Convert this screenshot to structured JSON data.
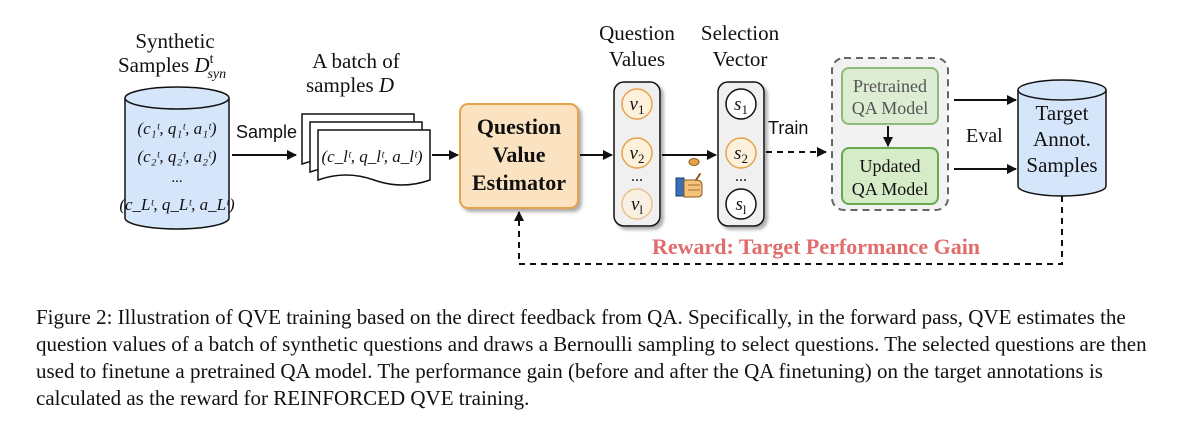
{
  "diagram": {
    "synthetic": {
      "line1": "Synthetic",
      "line2": "Samples ",
      "sym": "D",
      "sup": "t",
      "sub": "syn",
      "rows": [
        "(c₁ᵗ, q₁ᵗ, a₁ᵗ)",
        "(c₂ᵗ, q₂ᵗ, a₂ᵗ)",
        "...",
        "(c_Lᵗ, q_Lᵗ, a_Lᵗ)"
      ]
    },
    "batch": {
      "line1": "A batch of",
      "line2": "samples ",
      "sym": "D",
      "row": "(c_lᵗ, q_lᵗ, a_lᵗ)"
    },
    "sample_label": "Sample",
    "qve": {
      "line1": "Question",
      "line2": "Value",
      "line3": "Estimator"
    },
    "values": {
      "title1": "Question",
      "title2": "Values",
      "items": [
        "v",
        "v",
        "...",
        "v"
      ],
      "subs": [
        "1",
        "2",
        "",
        "l"
      ]
    },
    "selection": {
      "title1": "Selection",
      "title2": "Vector",
      "items": [
        "s",
        "s",
        "...",
        "s"
      ],
      "subs": [
        "1",
        "2",
        "",
        "l"
      ]
    },
    "train_label": "Train",
    "pretrained": {
      "line1": "Pretrained",
      "line2": "QA Model"
    },
    "updated": {
      "line1": "Updated",
      "line2": "QA Model"
    },
    "eval_label": "Eval",
    "target": {
      "line1": "Target",
      "line2": "Annot.",
      "line3": "Samples"
    },
    "reward_label": "Reward: Target Performance Gain",
    "colors": {
      "cylinder": "#d6e6fa",
      "qve_fill": "#fbe3c1",
      "qve_stroke": "#e6a24c",
      "circle_stroke": "#e6a24c",
      "circle_fill": "#fdf1dc",
      "model_fill": "#d6ecc9",
      "model_stroke": "#6aa84f",
      "reward": "#e06c6c"
    }
  },
  "caption": "Figure 2: Illustration of QVE training based on the direct feedback from QA. Specifically, in the forward pass, QVE estimates the question values of a batch of synthetic questions and draws a Bernoulli sampling to select questions. The selected questions are then used to finetune a pretrained QA model. The performance gain (before and after the QA finetuning) on the target annotations is calculated as the reward for REINFORCED QVE training."
}
